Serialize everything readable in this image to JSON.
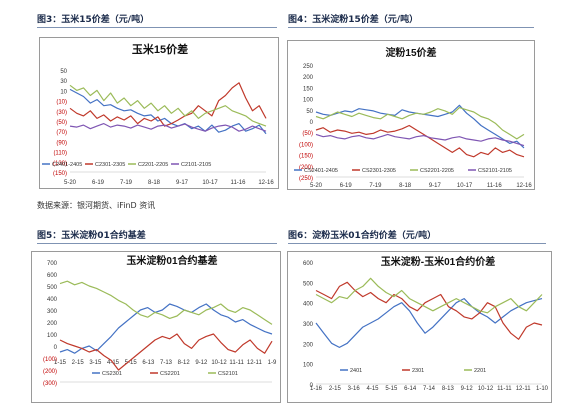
{
  "captions": {
    "fig3": "图3：玉米15价差（元/吨）",
    "fig4": "图4：玉米淀粉15价差（元/吨）",
    "fig5": "图5：玉米淀粉01合约基差",
    "fig6": "图6：淀粉玉米01合约价差（元/吨）"
  },
  "source_note": "数据来源：银河期货、iFinD 资讯",
  "colors": {
    "blue": "#4472c4",
    "red": "#c0392b",
    "green": "#9bbb59",
    "purple": "#7f56b3"
  },
  "chart_data": [
    {
      "type": "line",
      "title": "玉米15价差",
      "y_ticks": [
        "50",
        "30",
        "10",
        "(10)",
        "(30)",
        "(50)",
        "(70)",
        "(90)",
        "(110)",
        "(130)",
        "(150)"
      ],
      "ylim": [
        -150,
        50
      ],
      "x_ticks": [
        "5-20",
        "6-19",
        "7-19",
        "8-18",
        "9-17",
        "10-17",
        "11-16",
        "12-16"
      ],
      "series": [
        {
          "name": "C2401-2405",
          "color": "blue",
          "values": [
            12,
            5,
            -2,
            -15,
            -8,
            -20,
            -18,
            -25,
            -30,
            -28,
            -35,
            -40,
            -38,
            -50,
            -45,
            -55,
            -60,
            -55,
            -65,
            -60,
            -70,
            -58,
            -72,
            -68,
            -60,
            -55,
            -70,
            -65,
            -58,
            -75
          ]
        },
        {
          "name": "C2301-2305",
          "color": "red",
          "values": [
            -25,
            -35,
            -40,
            -30,
            -45,
            -38,
            -50,
            -42,
            -48,
            -40,
            -55,
            -45,
            -50,
            -42,
            -60,
            -55,
            -48,
            -40,
            -35,
            -20,
            -30,
            -40,
            -10,
            0,
            15,
            25,
            -5,
            -30,
            -20,
            -45
          ]
        },
        {
          "name": "C2201-2205",
          "color": "green",
          "values": [
            20,
            10,
            15,
            0,
            10,
            -10,
            5,
            -15,
            -5,
            -20,
            -10,
            -25,
            -15,
            -30,
            -20,
            -35,
            -25,
            -40,
            -30,
            -45,
            -35,
            -30,
            -25,
            -20,
            -30,
            -35,
            -40,
            -50,
            -55,
            -60
          ]
        },
        {
          "name": "C2101-2105",
          "color": "purple",
          "values": [
            -60,
            -62,
            -58,
            -65,
            -60,
            -55,
            -62,
            -58,
            -60,
            -64,
            -58,
            -62,
            -66,
            -60,
            -58,
            -64,
            -60,
            -56,
            -62,
            -66,
            -70,
            -64,
            -60,
            -58,
            -62,
            -70,
            -66,
            -60,
            -65,
            -70
          ]
        }
      ]
    },
    {
      "type": "line",
      "title": "淀粉15价差",
      "y_ticks": [
        "250",
        "200",
        "150",
        "100",
        "50",
        "0",
        "(50)",
        "(100)",
        "(150)",
        "(200)",
        "(250)"
      ],
      "ylim": [
        -250,
        250
      ],
      "x_ticks": [
        "5-20",
        "6-19",
        "7-19",
        "8-18",
        "9-17",
        "10-17",
        "11-16",
        "12-16"
      ],
      "series": [
        {
          "name": "CS2401-2405",
          "color": "blue",
          "values": [
            40,
            30,
            25,
            35,
            45,
            40,
            55,
            50,
            45,
            35,
            30,
            25,
            50,
            40,
            35,
            30,
            25,
            20,
            30,
            40,
            70,
            35,
            10,
            -20,
            -40,
            -60,
            -80,
            -100,
            -90,
            -120
          ]
        },
        {
          "name": "CS2301-2305",
          "color": "red",
          "values": [
            -40,
            -30,
            -50,
            -40,
            -45,
            -55,
            -50,
            -60,
            -55,
            -40,
            -50,
            -45,
            -35,
            -20,
            -40,
            -60,
            -80,
            -100,
            -120,
            -140,
            -120,
            -150,
            -160,
            -140,
            -150,
            -120,
            -140,
            -130,
            -150,
            -160
          ]
        },
        {
          "name": "CS2201-2205",
          "color": "green",
          "values": [
            20,
            10,
            25,
            40,
            30,
            20,
            35,
            25,
            15,
            10,
            30,
            20,
            10,
            25,
            35,
            30,
            40,
            55,
            45,
            30,
            60,
            50,
            40,
            20,
            10,
            -10,
            -40,
            -60,
            -80,
            -60
          ]
        },
        {
          "name": "CS2101-2105",
          "color": "purple",
          "values": [
            -60,
            -70,
            -65,
            -75,
            -80,
            -70,
            -65,
            -75,
            -80,
            -70,
            -60,
            -70,
            -75,
            -80,
            -70,
            -65,
            -75,
            -80,
            -85,
            -75,
            -70,
            -80,
            -85,
            -90,
            -80,
            -75,
            -85,
            -90,
            -100,
            -110
          ]
        }
      ]
    },
    {
      "type": "line",
      "title": "玉米淀粉01合约基差",
      "y_ticks": [
        "700",
        "600",
        "500",
        "400",
        "300",
        "200",
        "100",
        "0",
        "(100)",
        "(200)",
        "(300)"
      ],
      "ylim": [
        -300,
        700
      ],
      "x_ticks": [
        "1-15",
        "2-15",
        "3-15",
        "4-15",
        "5-15",
        "6-13",
        "7-13",
        "8-12",
        "9-12",
        "10-12",
        "11-11",
        "12-11",
        "1-9"
      ],
      "series": [
        {
          "name": "CS2301",
          "color": "blue",
          "values": [
            -50,
            -30,
            -60,
            -20,
            0,
            -40,
            20,
            80,
            150,
            200,
            250,
            300,
            320,
            280,
            300,
            350,
            330,
            300,
            280,
            320,
            350,
            300,
            260,
            240,
            200,
            220,
            180,
            150,
            120,
            100
          ]
        },
        {
          "name": "CS2201",
          "color": "red",
          "values": [
            50,
            20,
            0,
            -20,
            -50,
            -30,
            -80,
            -120,
            -200,
            -150,
            -100,
            -50,
            0,
            50,
            80,
            60,
            100,
            20,
            -20,
            50,
            80,
            100,
            30,
            -30,
            -50,
            10,
            50,
            -20,
            -60,
            40
          ]
        },
        {
          "name": "CS2101",
          "color": "green",
          "values": [
            520,
            540,
            510,
            530,
            500,
            480,
            450,
            420,
            380,
            350,
            300,
            260,
            240,
            280,
            260,
            230,
            250,
            300,
            280,
            260,
            300,
            320,
            350,
            300,
            280,
            320,
            300,
            260,
            220,
            180
          ]
        }
      ]
    },
    {
      "type": "line",
      "title": "玉米淀粉-玉米01合约价差",
      "y_ticks": [
        "600",
        "500",
        "400",
        "300",
        "200",
        "100",
        "0"
      ],
      "ylim": [
        0,
        600
      ],
      "x_ticks": [
        "1-16",
        "2-15",
        "3-16",
        "4-15",
        "5-15",
        "6-14",
        "7-14",
        "8-13",
        "9-12",
        "10-12",
        "11-11",
        "12-11",
        "1-10"
      ],
      "series": [
        {
          "name": "2401",
          "color": "blue",
          "values": [
            300,
            250,
            200,
            180,
            200,
            240,
            280,
            300,
            320,
            350,
            380,
            400,
            360,
            300,
            250,
            280,
            320,
            360,
            400,
            420,
            380,
            350,
            330,
            300,
            330,
            360,
            380,
            400,
            410,
            420
          ]
        },
        {
          "name": "2301",
          "color": "red",
          "values": [
            460,
            440,
            420,
            480,
            500,
            460,
            430,
            450,
            420,
            400,
            440,
            420,
            380,
            360,
            400,
            420,
            440,
            380,
            360,
            330,
            320,
            350,
            400,
            380,
            300,
            250,
            220,
            280,
            300,
            290
          ]
        },
        {
          "name": "2201",
          "color": "green",
          "values": [
            440,
            420,
            400,
            430,
            420,
            460,
            480,
            520,
            480,
            450,
            430,
            460,
            420,
            400,
            380,
            360,
            380,
            400,
            420,
            400,
            380,
            360,
            350,
            380,
            400,
            420,
            380,
            360,
            400,
            440
          ]
        }
      ]
    }
  ]
}
